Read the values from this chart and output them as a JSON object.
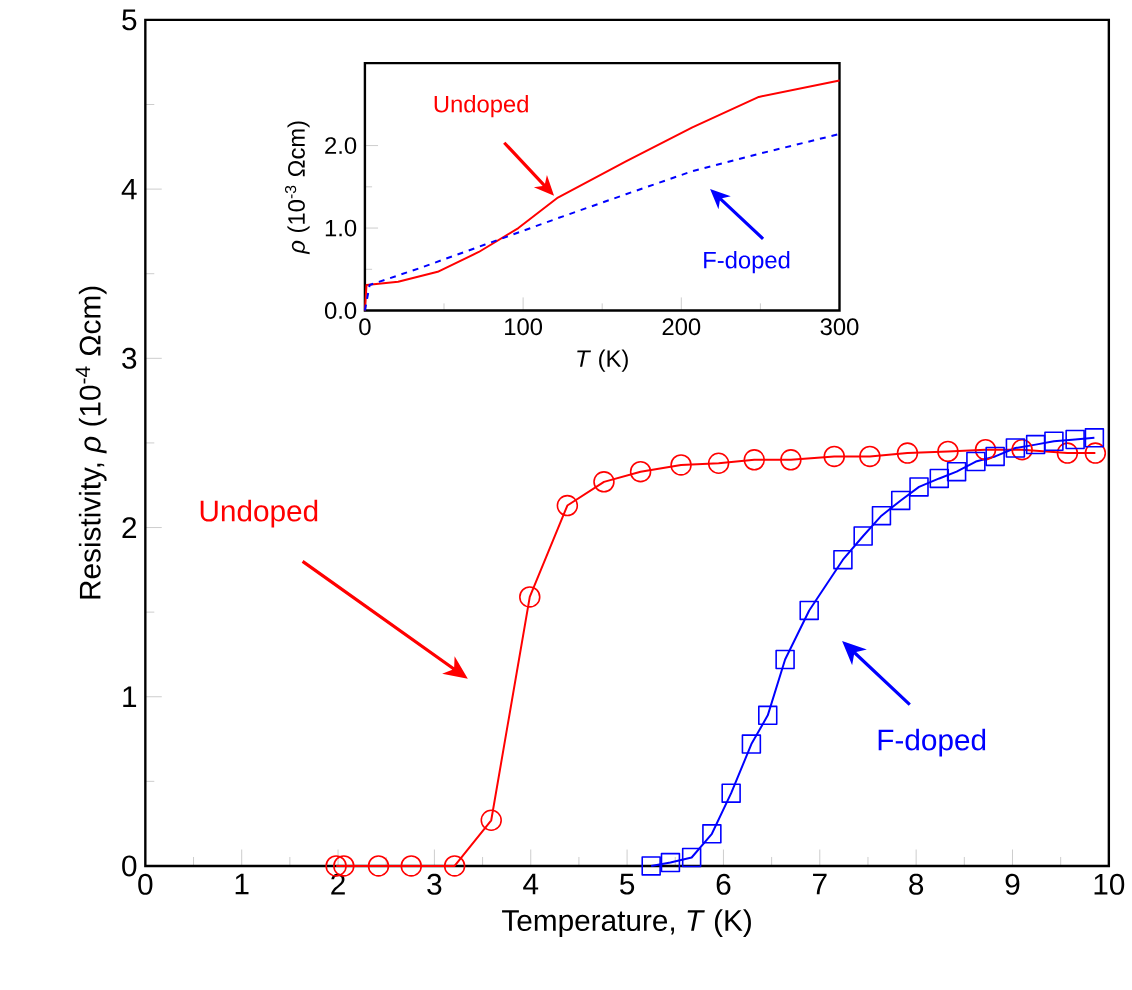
{
  "chart_data": [
    {
      "type": "line",
      "xlabel": "Temperature, *T* (K)",
      "ylabel": "Resistivity, *ρ* (10$^{-4}$ Ωcm)",
      "xlim": [
        0,
        10
      ],
      "xticks": [
        0,
        1,
        2,
        3,
        4,
        5,
        6,
        7,
        8,
        9,
        10
      ],
      "ylim": [
        0,
        5
      ],
      "yticks": [
        0,
        1,
        2,
        3,
        4,
        5
      ],
      "series": [
        {
          "color": "#ff0000",
          "marker": "circle",
          "line_style": "solid",
          "x": [
            1.98,
            2.06,
            2.42,
            2.76,
            3.21,
            3.59,
            3.99,
            4.38,
            4.76,
            5.14,
            5.56,
            5.95,
            6.32,
            6.7,
            7.15,
            7.52,
            7.91,
            8.33,
            8.72,
            9.1,
            9.57,
            9.86
          ],
          "values": [
            0,
            0,
            0,
            0,
            0,
            0.27,
            1.59,
            2.13,
            2.27,
            2.33,
            2.37,
            2.38,
            2.4,
            2.4,
            2.42,
            2.42,
            2.44,
            2.45,
            2.46,
            2.46,
            2.44,
            2.44
          ]
        },
        {
          "color": "#0000ff",
          "marker": "square",
          "line_style": "solid",
          "x": [
            5.25,
            5.45,
            5.67,
            5.88,
            6.08,
            6.29,
            6.46,
            6.64,
            6.89,
            7.24,
            7.45,
            7.64,
            7.84,
            8.03,
            8.24,
            8.42,
            8.62,
            8.82,
            9.03,
            9.24,
            9.43,
            9.65,
            9.85
          ],
          "values": [
            0,
            0.02,
            0.05,
            0.19,
            0.43,
            0.72,
            0.89,
            1.22,
            1.51,
            1.81,
            1.95,
            2.07,
            2.16,
            2.24,
            2.29,
            2.33,
            2.39,
            2.42,
            2.47,
            2.49,
            2.51,
            2.52,
            2.53
          ]
        }
      ],
      "annotations": [
        "Undoped",
        "F-doped"
      ]
    },
    {
      "type": "line",
      "xlabel": "*T* (K)",
      "ylabel": "*ρ* (10$^{-3}$ Ωcm)",
      "xlim": [
        0,
        300
      ],
      "xticks": [
        0,
        100,
        200,
        300
      ],
      "ylim": [
        0,
        3.0
      ],
      "yticks": [
        {
          "value": 0,
          "label": "0.0"
        },
        {
          "value": 1,
          "label": "1.0"
        },
        {
          "value": 2,
          "label": "2.0"
        }
      ],
      "series": [
        {
          "color": "#ff0000",
          "marker": "none",
          "line_style": "solid",
          "x": [
            0,
            1,
            21,
            46,
            72,
            97,
            122,
            165,
            207,
            249,
            300
          ],
          "values": [
            0,
            0.31,
            0.35,
            0.47,
            0.71,
            1.0,
            1.37,
            1.81,
            2.22,
            2.59,
            2.79
          ]
        },
        {
          "color": "#0000ff",
          "marker": "none",
          "line_style": "dashed",
          "x": [
            0,
            3,
            34,
            76,
            122,
            165,
            207,
            249,
            300
          ],
          "values": [
            0,
            0.31,
            0.51,
            0.8,
            1.12,
            1.41,
            1.69,
            1.9,
            2.14
          ]
        }
      ],
      "annotations": [
        "Undoped",
        "F-doped"
      ]
    }
  ]
}
